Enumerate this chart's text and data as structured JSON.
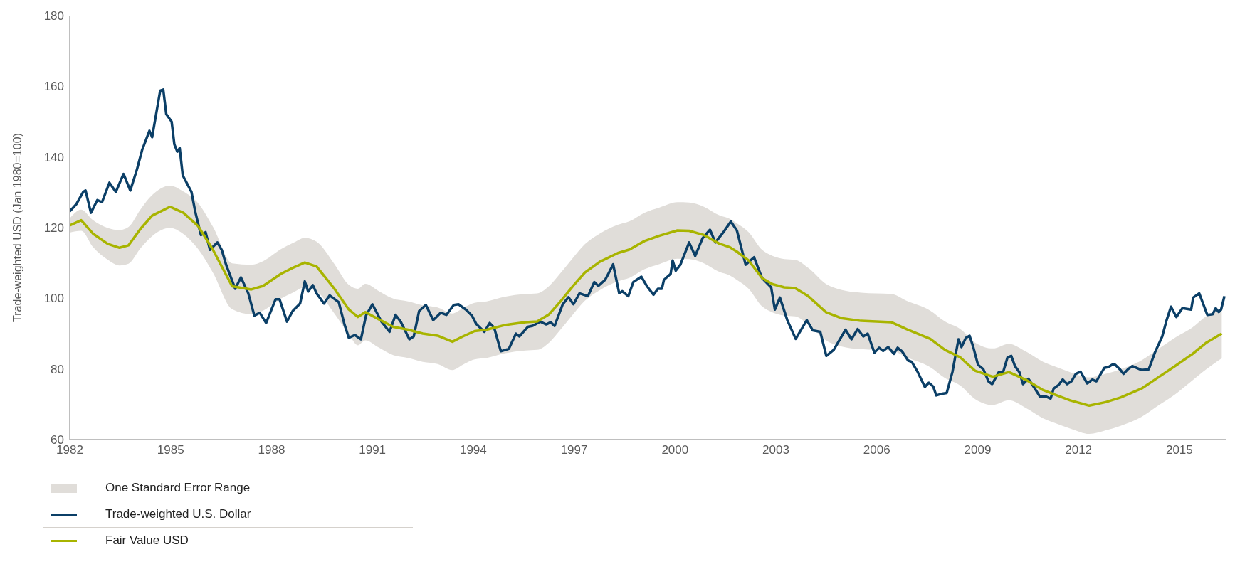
{
  "chart_data": {
    "type": "line",
    "ylabel": "Trade-weighted USD (Jan 1980=100)",
    "annotations": [
      "One Standard Error Range"
    ],
    "xlim": [
      1982,
      2016.4
    ],
    "xticks": [
      1982,
      1985,
      1988,
      1991,
      1994,
      1997,
      2000,
      2003,
      2006,
      2009,
      2012,
      2015
    ],
    "ylim": [
      60,
      180
    ],
    "yticks": [
      60,
      80,
      100,
      120,
      140,
      160,
      180
    ],
    "legend": "bottom left",
    "line_style": "solid",
    "series": [
      {
        "name": "Trade-weighted U.S. Dollar",
        "color": "#0b3f67",
        "x": [
          1982.0,
          1982.2,
          1982.4,
          1982.47,
          1982.63,
          1982.82,
          1982.96,
          1983.18,
          1983.37,
          1983.6,
          1983.8,
          1984.0,
          1984.15,
          1984.37,
          1984.45,
          1984.69,
          1984.78,
          1984.87,
          1985.03,
          1985.11,
          1985.2,
          1985.27,
          1985.36,
          1985.62,
          1985.73,
          1985.9,
          1986.04,
          1986.17,
          1986.39,
          1986.52,
          1986.65,
          1986.92,
          1987.09,
          1987.31,
          1987.49,
          1987.65,
          1987.84,
          1988.12,
          1988.24,
          1988.46,
          1988.63,
          1988.85,
          1988.99,
          1989.09,
          1989.23,
          1989.34,
          1989.56,
          1989.73,
          1990.0,
          1990.17,
          1990.3,
          1990.48,
          1990.66,
          1990.81,
          1991.0,
          1991.27,
          1991.51,
          1991.69,
          1991.84,
          1992.1,
          1992.23,
          1992.39,
          1992.59,
          1992.81,
          1993.03,
          1993.2,
          1993.42,
          1993.56,
          1993.78,
          1993.96,
          1994.09,
          1994.33,
          1994.49,
          1994.62,
          1994.82,
          1995.06,
          1995.27,
          1995.37,
          1995.62,
          1995.77,
          1995.99,
          1996.17,
          1996.3,
          1996.42,
          1996.66,
          1996.83,
          1996.98,
          1997.16,
          1997.41,
          1997.6,
          1997.72,
          1997.92,
          1998.01,
          1998.16,
          1998.34,
          1998.43,
          1998.61,
          1998.76,
          1999.0,
          1999.16,
          1999.36,
          1999.49,
          1999.61,
          1999.67,
          1999.87,
          1999.93,
          2000.02,
          2000.16,
          2000.42,
          2000.6,
          2000.82,
          2001.04,
          2001.2,
          2001.44,
          2001.66,
          2001.84,
          2002.1,
          2002.35,
          2002.59,
          2002.86,
          2002.97,
          2003.12,
          2003.34,
          2003.59,
          2003.92,
          2004.1,
          2004.32,
          2004.5,
          2004.72,
          2005.07,
          2005.25,
          2005.43,
          2005.6,
          2005.73,
          2005.93,
          2006.07,
          2006.19,
          2006.34,
          2006.51,
          2006.62,
          2006.75,
          2006.93,
          2007.04,
          2007.22,
          2007.43,
          2007.55,
          2007.68,
          2007.77,
          2007.95,
          2008.08,
          2008.25,
          2008.43,
          2008.52,
          2008.65,
          2008.76,
          2008.87,
          2009.01,
          2009.17,
          2009.32,
          2009.43,
          2009.63,
          2009.76,
          2009.89,
          2010.0,
          2010.11,
          2010.24,
          2010.35,
          2010.51,
          2010.67,
          2010.85,
          2011.0,
          2011.17,
          2011.26,
          2011.41,
          2011.53,
          2011.66,
          2011.79,
          2011.92,
          2012.06,
          2012.26,
          2012.41,
          2012.53,
          2012.77,
          2012.9,
          2013.0,
          2013.09,
          2013.23,
          2013.34,
          2013.47,
          2013.6,
          2013.87,
          2014.09,
          2014.27,
          2014.49,
          2014.62,
          2014.75,
          2014.91,
          2015.09,
          2015.35,
          2015.41,
          2015.59,
          2015.83,
          2015.99,
          2016.08,
          2016.17,
          2016.24,
          2016.34
        ],
        "values": [
          124.6,
          126.7,
          130.1,
          130.5,
          124.2,
          127.8,
          127.2,
          132.7,
          130.1,
          135.2,
          130.5,
          136.5,
          141.9,
          147.4,
          145.6,
          158.8,
          159.1,
          152.1,
          150.0,
          143.6,
          141.5,
          142.5,
          134.8,
          130.1,
          124.6,
          117.9,
          118.7,
          113.7,
          115.8,
          113.7,
          109.5,
          102.7,
          105.9,
          101.4,
          95.1,
          95.9,
          93.0,
          99.7,
          99.7,
          93.4,
          96.4,
          98.5,
          104.8,
          101.9,
          103.7,
          101.4,
          98.5,
          100.8,
          98.9,
          92.6,
          88.8,
          89.6,
          88.4,
          95.1,
          98.3,
          93.4,
          90.5,
          95.3,
          93.4,
          88.4,
          89.2,
          96.4,
          98.1,
          93.8,
          95.9,
          95.3,
          98.1,
          98.3,
          96.8,
          95.1,
          92.7,
          90.5,
          93.0,
          91.7,
          85.0,
          85.7,
          90.0,
          89.2,
          91.9,
          92.2,
          93.4,
          92.6,
          93.2,
          92.2,
          98.3,
          100.3,
          98.3,
          101.4,
          100.6,
          104.6,
          103.5,
          105.2,
          106.8,
          109.6,
          101.4,
          102.0,
          100.6,
          104.6,
          106.1,
          103.5,
          101.0,
          102.7,
          102.7,
          105.2,
          106.9,
          110.7,
          107.8,
          109.5,
          115.8,
          112.0,
          117.0,
          119.4,
          115.8,
          118.7,
          121.7,
          119.2,
          109.5,
          111.6,
          105.7,
          103.1,
          96.8,
          100.2,
          93.8,
          88.5,
          93.8,
          90.9,
          90.5,
          83.7,
          85.4,
          91.1,
          88.4,
          91.3,
          89.2,
          90.0,
          84.6,
          86.0,
          85.1,
          86.2,
          84.3,
          86.0,
          85.0,
          82.4,
          82.0,
          79.1,
          74.9,
          76.1,
          75.0,
          72.5,
          73.0,
          73.2,
          79.1,
          88.4,
          86.2,
          88.8,
          89.4,
          86.2,
          81.2,
          79.9,
          76.5,
          75.7,
          79.1,
          79.2,
          83.3,
          83.7,
          80.8,
          79.1,
          75.7,
          77.2,
          74.9,
          72.2,
          72.3,
          71.6,
          74.4,
          75.5,
          77.0,
          75.7,
          76.5,
          78.6,
          79.2,
          75.9,
          77.0,
          76.5,
          80.3,
          80.6,
          81.2,
          81.2,
          79.9,
          78.6,
          79.9,
          80.8,
          79.7,
          79.9,
          84.6,
          89.2,
          93.8,
          97.6,
          94.7,
          97.2,
          96.8,
          100.2,
          101.4,
          95.3,
          95.5,
          97.2,
          96.1,
          96.8,
          100.6
        ]
      },
      {
        "name": "Fair Value USD",
        "color": "#a8b400",
        "x": [
          1982.0,
          1982.34,
          1982.69,
          1983.13,
          1983.48,
          1983.75,
          1984.1,
          1984.45,
          1984.98,
          1985.38,
          1985.82,
          1986.26,
          1986.83,
          1987.4,
          1987.75,
          1988.28,
          1988.63,
          1988.99,
          1989.34,
          1989.87,
          1990.3,
          1990.57,
          1990.79,
          1991.18,
          1991.62,
          1992.06,
          1992.5,
          1992.94,
          1993.38,
          1993.69,
          1994.04,
          1994.4,
          1994.93,
          1995.55,
          1995.9,
          1996.26,
          1996.61,
          1996.97,
          1997.32,
          1997.76,
          1998.3,
          1998.65,
          1999.09,
          1999.54,
          2000.07,
          2000.42,
          2000.86,
          2001.31,
          2001.62,
          2001.84,
          2002.19,
          2002.59,
          2002.9,
          2003.25,
          2003.57,
          2003.96,
          2004.5,
          2004.94,
          2005.53,
          2006.44,
          2006.88,
          2007.59,
          2008.03,
          2008.48,
          2008.92,
          2009.45,
          2009.93,
          2010.42,
          2010.95,
          2011.3,
          2011.75,
          2012.32,
          2012.81,
          2013.25,
          2013.87,
          2014.4,
          2014.93,
          2015.37,
          2015.81,
          2016.26
        ],
        "values": [
          120.6,
          122.1,
          118.3,
          115.4,
          114.3,
          115.0,
          119.6,
          123.4,
          125.9,
          124.2,
          120.4,
          113.7,
          103.4,
          102.5,
          103.5,
          106.9,
          108.6,
          110.1,
          109.0,
          102.7,
          96.8,
          94.7,
          96.1,
          94.1,
          91.9,
          91.1,
          90.0,
          89.4,
          87.7,
          89.2,
          90.7,
          91.1,
          92.4,
          93.2,
          93.4,
          95.5,
          99.3,
          103.5,
          107.3,
          110.3,
          112.8,
          113.8,
          116.2,
          117.7,
          119.2,
          119.1,
          117.9,
          115.5,
          114.5,
          113.2,
          110.7,
          105.7,
          104.0,
          103.1,
          102.9,
          100.6,
          96.0,
          94.4,
          93.6,
          93.2,
          91.3,
          88.5,
          85.4,
          83.3,
          79.5,
          77.8,
          79.1,
          77.0,
          74.0,
          72.7,
          71.1,
          69.6,
          70.6,
          71.9,
          74.4,
          77.8,
          81.2,
          84.1,
          87.5,
          90.0
        ],
        "lower": [
          118.6,
          119.1,
          114.5,
          110.9,
          109.3,
          109.8,
          114.1,
          117.6,
          119.9,
          118.2,
          113.9,
          107.2,
          96.9,
          95.5,
          96.5,
          99.9,
          101.6,
          103.1,
          102.0,
          95.7,
          89.8,
          86.7,
          88.1,
          86.1,
          83.9,
          83.1,
          82.0,
          81.4,
          79.7,
          81.2,
          82.7,
          83.1,
          84.4,
          85.2,
          85.4,
          87.5,
          91.3,
          95.5,
          99.3,
          102.3,
          104.8,
          105.8,
          108.2,
          109.7,
          111.2,
          111.1,
          109.9,
          107.5,
          106.5,
          105.2,
          102.7,
          97.7,
          96.0,
          95.1,
          94.9,
          92.6,
          88.0,
          86.4,
          85.6,
          85.2,
          83.3,
          80.5,
          77.4,
          75.3,
          71.5,
          69.8,
          71.1,
          69.0,
          66.0,
          64.7,
          63.1,
          61.6,
          62.6,
          63.9,
          66.4,
          69.8,
          73.2,
          76.6,
          80.0,
          83.0
        ],
        "upper": [
          122.6,
          125.1,
          122.1,
          119.9,
          119.3,
          120.2,
          125.1,
          129.2,
          131.9,
          130.2,
          126.9,
          120.2,
          109.9,
          109.5,
          110.5,
          113.9,
          115.6,
          117.1,
          116.0,
          109.7,
          103.8,
          102.7,
          104.1,
          102.1,
          99.9,
          99.1,
          98.0,
          97.4,
          95.7,
          97.2,
          98.7,
          99.1,
          100.4,
          101.2,
          101.4,
          103.5,
          107.3,
          111.5,
          115.3,
          118.3,
          120.8,
          121.8,
          124.2,
          125.7,
          127.2,
          127.1,
          125.9,
          123.5,
          122.5,
          121.2,
          118.7,
          113.7,
          112.0,
          111.1,
          110.9,
          108.6,
          104.0,
          102.4,
          101.6,
          101.2,
          99.3,
          96.5,
          93.4,
          91.3,
          87.5,
          85.8,
          87.1,
          85.0,
          82.0,
          80.7,
          79.1,
          77.6,
          78.6,
          79.9,
          82.4,
          85.8,
          89.2,
          91.6,
          95.0,
          97.0
        ]
      }
    ]
  }
}
